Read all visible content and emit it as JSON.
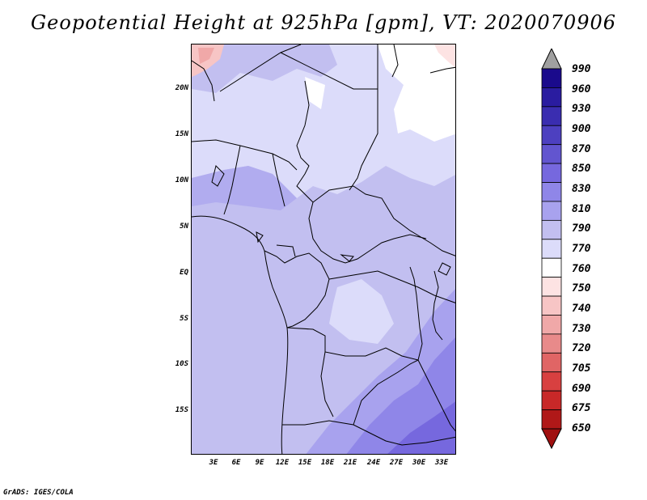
{
  "title": "Geopotential Height at 925hPa [gpm], VT: 2020070906",
  "credit": "GrADS: IGES/COLA",
  "map": {
    "lat_labels": [
      "20N",
      "15N",
      "10N",
      "5N",
      "EQ",
      "5S",
      "10S",
      "15S"
    ],
    "lon_labels": [
      "3E",
      "6E",
      "9E",
      "12E",
      "15E",
      "18E",
      "21E",
      "24E",
      "27E",
      "30E",
      "33E"
    ],
    "colors": {
      "base": "#c2bff0",
      "light_lavender": "#dcdcfa",
      "near_white": "#ffffff",
      "mid_purple": "#a8a2ee",
      "deep_purple": "#8f86e8",
      "darkest": "#7668de",
      "pink": "#f7c5c5",
      "pink_dark": "#f0a8a8",
      "border": "#000000"
    }
  },
  "colorbar": {
    "labels": [
      "990",
      "960",
      "930",
      "900",
      "870",
      "850",
      "830",
      "810",
      "790",
      "770",
      "760",
      "750",
      "740",
      "730",
      "720",
      "705",
      "690",
      "675",
      "650"
    ],
    "colors": [
      "#1a0a8c",
      "#2a1ca0",
      "#3a2db0",
      "#4d40c0",
      "#6255cf",
      "#7668de",
      "#8f86e8",
      "#a8a2ee",
      "#c2bff0",
      "#dcdcfa",
      "#ffffff",
      "#fde3e3",
      "#f7c5c5",
      "#f0a8a8",
      "#e88a8a",
      "#e06565",
      "#d84040",
      "#c82828",
      "#b01818"
    ],
    "top_cap_color": "#a0a0a0",
    "bottom_cap_color": "#a01010"
  }
}
